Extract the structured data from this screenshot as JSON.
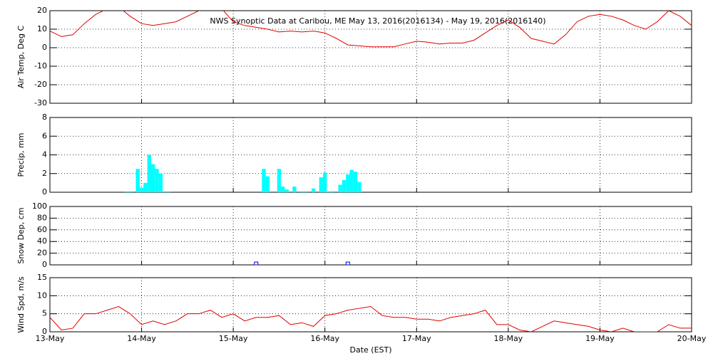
{
  "chart_data": [
    {
      "type": "line",
      "title": "NWS Synoptic Data at Caribou, ME   May 13, 2016(2016134) - May 19, 2016(2016140)",
      "y_label": "Air Temp, Deg C",
      "xlim": [
        0,
        168
      ],
      "xticks": [
        0,
        24,
        48,
        72,
        96,
        120,
        144,
        168
      ],
      "ylim": [
        -30,
        20
      ],
      "yticks": [
        -30,
        -20,
        -10,
        0,
        10,
        20
      ],
      "grid": true,
      "x": [
        0,
        3,
        6,
        9,
        12,
        15,
        18,
        21,
        24,
        27,
        30,
        33,
        36,
        39,
        42,
        45,
        48,
        51,
        54,
        57,
        60,
        63,
        66,
        69,
        72,
        75,
        78,
        81,
        84,
        87,
        90,
        93,
        96,
        99,
        102,
        105,
        108,
        111,
        114,
        117,
        120,
        123,
        126,
        129,
        132,
        135,
        138,
        141,
        144,
        147,
        150,
        153,
        156,
        159,
        162,
        165,
        168
      ],
      "series": [
        {
          "color": "#e00000",
          "values": [
            9,
            6,
            7,
            13,
            18,
            21,
            22,
            17,
            13,
            12,
            13,
            14,
            17,
            20,
            22,
            21,
            14,
            12,
            11,
            10,
            8.5,
            9,
            8.5,
            9,
            8,
            5,
            1.5,
            1,
            0.5,
            0.5,
            0.5,
            2,
            3.5,
            3,
            2,
            2.5,
            2.5,
            4,
            8,
            12,
            15,
            11,
            5,
            3.5,
            2,
            7,
            14,
            17,
            18,
            17,
            15,
            12,
            10,
            14,
            20,
            17,
            12
          ]
        }
      ]
    },
    {
      "type": "bar",
      "y_label": "Precip, mm",
      "xlim": [
        0,
        168
      ],
      "xticks": [
        0,
        24,
        48,
        72,
        96,
        120,
        144,
        168
      ],
      "ylim": [
        0,
        8
      ],
      "yticks": [
        0,
        2,
        4,
        6,
        8
      ],
      "grid": true,
      "bar_width": 1,
      "x": [
        20,
        21,
        23,
        24,
        25,
        26,
        27,
        28,
        29,
        30,
        31,
        56,
        57,
        60,
        61,
        62,
        64,
        66,
        67,
        69,
        71,
        72,
        73,
        74,
        76,
        77,
        78,
        79,
        80,
        81
      ],
      "series": [
        {
          "color": "#00ffff",
          "values": [
            0.1,
            0.1,
            2.5,
            0.5,
            1,
            4,
            3,
            2.5,
            2,
            0.1,
            0.1,
            2.5,
            1.7,
            2.5,
            0.6,
            0.3,
            0.6,
            0.1,
            0.1,
            0.4,
            1.6,
            2.1,
            0.1,
            0.1,
            0.8,
            1.3,
            1.9,
            2.4,
            2.2,
            1.1
          ]
        }
      ]
    },
    {
      "type": "scatter",
      "y_label": "Snow Dep, cm",
      "xlim": [
        0,
        168
      ],
      "xticks": [
        0,
        24,
        48,
        72,
        96,
        120,
        144,
        168
      ],
      "ylim": [
        0,
        100
      ],
      "yticks": [
        0,
        20,
        40,
        60,
        80,
        100
      ],
      "grid": true,
      "x": [
        54,
        78
      ],
      "series": [
        {
          "color": "#0000cc",
          "values": [
            0,
            0
          ]
        }
      ]
    },
    {
      "type": "line",
      "y_label": "Wind Spd, m/s",
      "x_label": "Date (EST)",
      "xlim": [
        0,
        168
      ],
      "xticks": [
        {
          "value": 0,
          "label": "13-May"
        },
        {
          "value": 24,
          "label": "14-May"
        },
        {
          "value": 48,
          "label": "15-May"
        },
        {
          "value": 72,
          "label": "16-May"
        },
        {
          "value": 96,
          "label": "17-May"
        },
        {
          "value": 120,
          "label": "18-May"
        },
        {
          "value": 144,
          "label": "19-May"
        },
        {
          "value": 168,
          "label": "20-May"
        }
      ],
      "ylim": [
        0,
        15
      ],
      "yticks": [
        0,
        5,
        10,
        15
      ],
      "grid": true,
      "x": [
        0,
        3,
        6,
        9,
        12,
        15,
        18,
        21,
        24,
        27,
        30,
        33,
        36,
        39,
        42,
        45,
        48,
        51,
        54,
        57,
        60,
        63,
        66,
        69,
        72,
        75,
        78,
        81,
        84,
        87,
        90,
        93,
        96,
        99,
        102,
        105,
        108,
        111,
        114,
        117,
        120,
        123,
        126,
        129,
        132,
        135,
        138,
        141,
        144,
        147,
        150,
        153,
        156,
        159,
        162,
        165,
        168
      ],
      "series": [
        {
          "color": "#e00000",
          "values": [
            4,
            0.5,
            1,
            5,
            5,
            6,
            7,
            5,
            2,
            3,
            2,
            3,
            5,
            5,
            6,
            4,
            5,
            3,
            4,
            4,
            4.5,
            2,
            2.5,
            1.5,
            4.5,
            5,
            6,
            6.5,
            7,
            4.5,
            4,
            4,
            3.5,
            3.5,
            3,
            4,
            4.5,
            5,
            6,
            2,
            2,
            0.5,
            0,
            1.5,
            3,
            2.5,
            2,
            1.5,
            0.5,
            0,
            1,
            0,
            0,
            0,
            2,
            1,
            1
          ]
        }
      ]
    }
  ]
}
